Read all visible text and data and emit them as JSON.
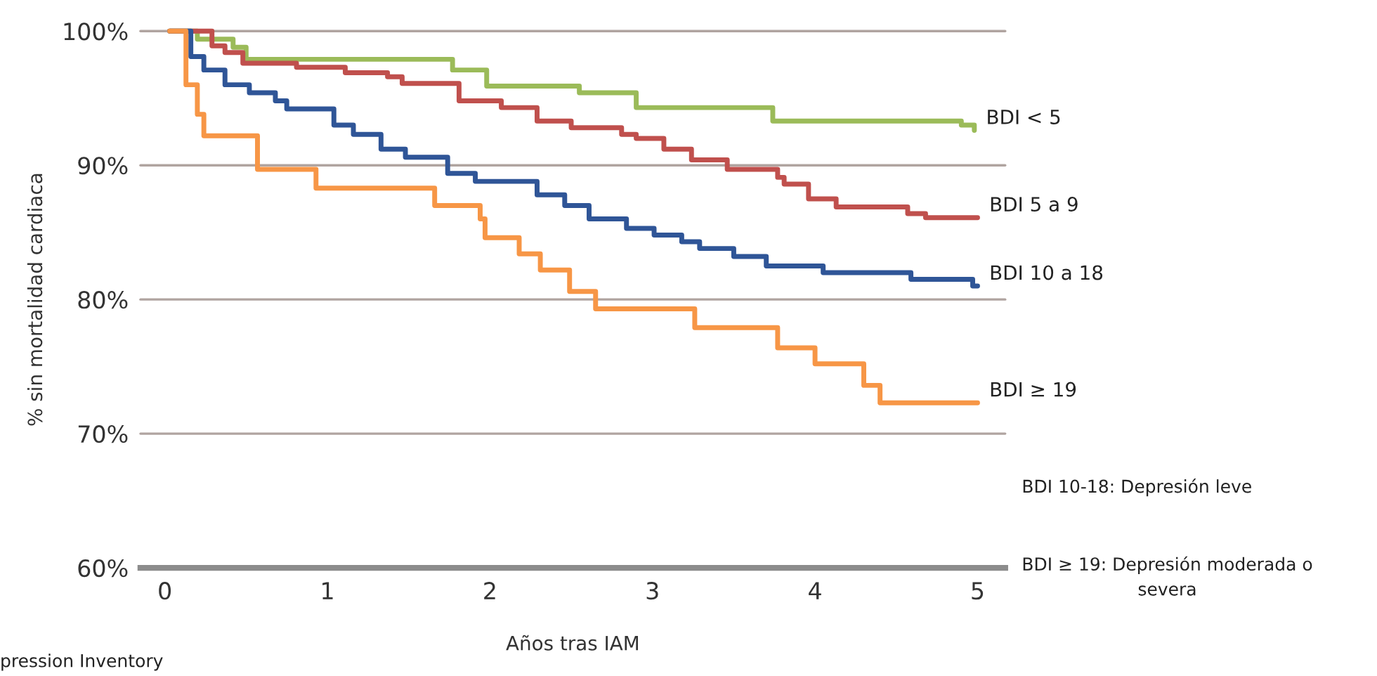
{
  "chart_data": {
    "type": "step",
    "ylabel": "% sin mortalidad cardiaca",
    "xlabel": "Años tras IAM",
    "xlim": [
      -0.15,
      5.17
    ],
    "xticks": [
      0,
      1,
      2,
      3,
      4,
      5
    ],
    "ylim": [
      60,
      100
    ],
    "yticks": [
      {
        "value": 60,
        "label": "60%"
      },
      {
        "value": 70,
        "label": "70%"
      },
      {
        "value": 80,
        "label": "80%"
      },
      {
        "value": 90,
        "label": "90%"
      },
      {
        "value": 100,
        "label": "100%"
      }
    ],
    "grid": "y",
    "legend": false,
    "series": [
      {
        "name": "BDI < 5",
        "color": "#9bbb59",
        "x": [
          0.03,
          0.2,
          0.42,
          0.5,
          1.77,
          1.98,
          2.55,
          2.9,
          3.74,
          4.9,
          4.98
        ],
        "values": [
          100,
          99.4,
          98.8,
          97.9,
          97.1,
          95.9,
          95.4,
          94.3,
          93.3,
          93.0,
          92.6
        ]
      },
      {
        "name": "BDI 5 a 9",
        "color": "#c0504d",
        "x": [
          0.03,
          0.29,
          0.37,
          0.48,
          0.81,
          1.11,
          1.37,
          1.46,
          1.81,
          2.07,
          2.29,
          2.5,
          2.81,
          2.9,
          3.07,
          3.24,
          3.46,
          3.77,
          3.81,
          3.96,
          4.13,
          4.57,
          4.68,
          5.0
        ],
        "values": [
          100,
          98.9,
          98.4,
          97.6,
          97.3,
          96.9,
          96.6,
          96.1,
          94.8,
          94.3,
          93.3,
          92.8,
          92.3,
          92.0,
          91.2,
          90.4,
          89.7,
          89.1,
          88.6,
          87.5,
          86.9,
          86.4,
          86.1,
          86.1
        ]
      },
      {
        "name": "BDI 10 a 18",
        "color": "#2f5597",
        "x": [
          0.03,
          0.16,
          0.24,
          0.37,
          0.52,
          0.68,
          0.75,
          1.04,
          1.16,
          1.33,
          1.48,
          1.74,
          1.91,
          2.29,
          2.46,
          2.61,
          2.84,
          3.01,
          3.18,
          3.29,
          3.5,
          3.7,
          4.05,
          4.59,
          4.97,
          5.0
        ],
        "values": [
          100,
          98.1,
          97.1,
          96.0,
          95.4,
          94.8,
          94.2,
          93.0,
          92.3,
          91.2,
          90.6,
          89.4,
          88.8,
          87.8,
          87.0,
          86.0,
          85.3,
          84.8,
          84.3,
          83.8,
          83.2,
          82.5,
          82.0,
          81.5,
          81.0,
          81.0
        ]
      },
      {
        "name": "BDI ≥ 19",
        "color": "#f79646",
        "x": [
          0.03,
          0.13,
          0.2,
          0.24,
          0.57,
          0.93,
          1.66,
          1.94,
          1.97,
          2.18,
          2.31,
          2.49,
          2.65,
          3.26,
          3.77,
          4.0,
          4.3,
          4.4,
          5.0
        ],
        "values": [
          100,
          96.0,
          93.8,
          92.2,
          89.7,
          88.3,
          87.0,
          86.0,
          84.6,
          83.4,
          82.2,
          80.6,
          79.3,
          77.9,
          76.4,
          75.2,
          73.6,
          72.3,
          72.3
        ]
      }
    ],
    "annotations": [
      "BDI 10-18: Depresión leve",
      "BDI ≥ 19: Depresión moderada o\nsevera",
      "pression Inventory"
    ]
  }
}
